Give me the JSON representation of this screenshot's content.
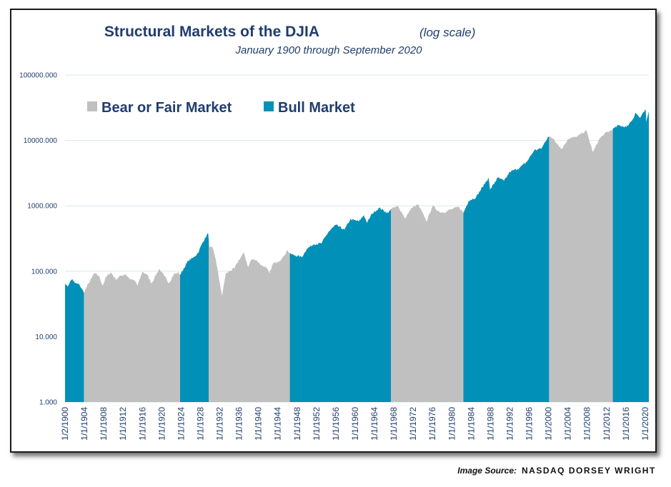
{
  "chart_data": {
    "type": "area",
    "title": "Structural Markets of the DJIA",
    "title_note": "(log scale)",
    "subtitle": "January 1900 through September 2020",
    "y_scale": "log",
    "ylim": [
      1,
      100000
    ],
    "y_ticks": [
      {
        "value": 1,
        "label": "1.000"
      },
      {
        "value": 10,
        "label": "10.000"
      },
      {
        "value": 100,
        "label": "100.000"
      },
      {
        "value": 1000,
        "label": "1000.000"
      },
      {
        "value": 10000,
        "label": "10000.000"
      },
      {
        "value": 100000,
        "label": "100000.000"
      }
    ],
    "x_ticks": [
      {
        "year": 1900.0,
        "label": "1/2/1900"
      },
      {
        "year": 1904,
        "label": "1/1/1904"
      },
      {
        "year": 1908,
        "label": "1/1/1908"
      },
      {
        "year": 1912,
        "label": "1/1/1912"
      },
      {
        "year": 1916,
        "label": "1/1/1916"
      },
      {
        "year": 1920,
        "label": "1/1/1920"
      },
      {
        "year": 1924,
        "label": "1/1/1924"
      },
      {
        "year": 1928,
        "label": "1/1/1928"
      },
      {
        "year": 1932,
        "label": "1/1/1932"
      },
      {
        "year": 1936,
        "label": "1/1/1936"
      },
      {
        "year": 1940,
        "label": "1/1/1940"
      },
      {
        "year": 1944,
        "label": "1/1/1944"
      },
      {
        "year": 1948,
        "label": "1/1/1948"
      },
      {
        "year": 1952,
        "label": "1/1/1952"
      },
      {
        "year": 1956,
        "label": "1/1/1956"
      },
      {
        "year": 1960,
        "label": "1/1/1960"
      },
      {
        "year": 1964,
        "label": "1/1/1964"
      },
      {
        "year": 1968,
        "label": "1/1/1968"
      },
      {
        "year": 1972,
        "label": "1/1/1972"
      },
      {
        "year": 1976,
        "label": "1/1/1976"
      },
      {
        "year": 1980,
        "label": "1/1/1980"
      },
      {
        "year": 1984,
        "label": "1/1/1984"
      },
      {
        "year": 1988,
        "label": "1/1/1988"
      },
      {
        "year": 1992,
        "label": "1/1/1992"
      },
      {
        "year": 1996,
        "label": "1/1/1996"
      },
      {
        "year": 2000,
        "label": "1/1/2000"
      },
      {
        "year": 2004,
        "label": "1/1/2004"
      },
      {
        "year": 2008,
        "label": "1/1/2008"
      },
      {
        "year": 2012,
        "label": "1/1/2012"
      },
      {
        "year": 2016,
        "label": "1/1/2016"
      },
      {
        "year": 2020,
        "label": "1/1/2020"
      }
    ],
    "xlim": [
      1900.0,
      2020.75
    ],
    "legend": {
      "placement": "top-left",
      "items": [
        {
          "label": "Bear or Fair Market",
          "color": "#c0c0c0"
        },
        {
          "label": "Bull Market",
          "color": "#0090b8"
        }
      ]
    },
    "regimes": [
      {
        "start": 1900.0,
        "end": 1903.9,
        "type": "bull"
      },
      {
        "start": 1903.9,
        "end": 1923.8,
        "type": "bear"
      },
      {
        "start": 1923.8,
        "end": 1929.7,
        "type": "bull"
      },
      {
        "start": 1929.7,
        "end": 1946.5,
        "type": "bear"
      },
      {
        "start": 1946.5,
        "end": 1967.4,
        "type": "bull"
      },
      {
        "start": 1967.4,
        "end": 1982.4,
        "type": "bear"
      },
      {
        "start": 1982.4,
        "end": 2000.1,
        "type": "bull"
      },
      {
        "start": 2000.1,
        "end": 2013.3,
        "type": "bear"
      },
      {
        "start": 2013.3,
        "end": 2020.75,
        "type": "bull"
      }
    ],
    "series": [
      {
        "values": [
          [
            1900.0,
            66
          ],
          [
            1900.5,
            58
          ],
          [
            1901.0,
            68
          ],
          [
            1901.5,
            76
          ],
          [
            1902.0,
            66
          ],
          [
            1903.0,
            62
          ],
          [
            1903.9,
            47
          ],
          [
            1904.5,
            58
          ],
          [
            1905.5,
            78
          ],
          [
            1906.0,
            93
          ],
          [
            1907.0,
            85
          ],
          [
            1907.8,
            60
          ],
          [
            1908.5,
            82
          ],
          [
            1909.5,
            96
          ],
          [
            1910.5,
            75
          ],
          [
            1911.5,
            85
          ],
          [
            1912.5,
            90
          ],
          [
            1913.5,
            75
          ],
          [
            1914.5,
            71
          ],
          [
            1915.0,
            60
          ],
          [
            1916.0,
            98
          ],
          [
            1917.0,
            88
          ],
          [
            1917.9,
            65
          ],
          [
            1918.5,
            80
          ],
          [
            1919.5,
            108
          ],
          [
            1920.5,
            85
          ],
          [
            1921.5,
            66
          ],
          [
            1922.5,
            90
          ],
          [
            1923.5,
            95
          ],
          [
            1923.8,
            88
          ],
          [
            1924.5,
            108
          ],
          [
            1925.5,
            145
          ],
          [
            1926.5,
            160
          ],
          [
            1927.5,
            190
          ],
          [
            1928.5,
            280
          ],
          [
            1929.6,
            381
          ],
          [
            1929.9,
            230
          ],
          [
            1930.5,
            230
          ],
          [
            1931.2,
            150
          ],
          [
            1931.8,
            80
          ],
          [
            1932.5,
            42
          ],
          [
            1933.2,
            90
          ],
          [
            1934.0,
            100
          ],
          [
            1935.0,
            110
          ],
          [
            1936.0,
            150
          ],
          [
            1937.0,
            190
          ],
          [
            1937.9,
            115
          ],
          [
            1938.5,
            150
          ],
          [
            1939.5,
            150
          ],
          [
            1940.5,
            125
          ],
          [
            1941.5,
            115
          ],
          [
            1942.3,
            93
          ],
          [
            1943.0,
            130
          ],
          [
            1944.0,
            140
          ],
          [
            1945.0,
            160
          ],
          [
            1946.0,
            210
          ],
          [
            1946.5,
            185
          ],
          [
            1947.5,
            175
          ],
          [
            1949.0,
            165
          ],
          [
            1950.0,
            220
          ],
          [
            1951.5,
            260
          ],
          [
            1953.0,
            265
          ],
          [
            1954.5,
            400
          ],
          [
            1956.0,
            510
          ],
          [
            1957.8,
            430
          ],
          [
            1959.0,
            620
          ],
          [
            1960.8,
            580
          ],
          [
            1961.8,
            720
          ],
          [
            1962.5,
            550
          ],
          [
            1963.5,
            760
          ],
          [
            1965.0,
            930
          ],
          [
            1966.8,
            770
          ],
          [
            1967.4,
            900
          ],
          [
            1968.9,
            980
          ],
          [
            1970.4,
            640
          ],
          [
            1971.5,
            900
          ],
          [
            1973.0,
            1050
          ],
          [
            1974.8,
            580
          ],
          [
            1976.0,
            1000
          ],
          [
            1977.5,
            800
          ],
          [
            1978.5,
            800
          ],
          [
            1980.0,
            890
          ],
          [
            1981.5,
            960
          ],
          [
            1982.4,
            780
          ],
          [
            1983.5,
            1200
          ],
          [
            1985.0,
            1350
          ],
          [
            1987.6,
            2700
          ],
          [
            1987.9,
            1750
          ],
          [
            1989.5,
            2700
          ],
          [
            1990.8,
            2400
          ],
          [
            1992.0,
            3300
          ],
          [
            1994.0,
            3800
          ],
          [
            1995.5,
            4700
          ],
          [
            1997.0,
            7000
          ],
          [
            1998.6,
            7600
          ],
          [
            1999.9,
            11500
          ],
          [
            2001.0,
            10700
          ],
          [
            2002.7,
            7300
          ],
          [
            2004.0,
            10500
          ],
          [
            2006.0,
            11500
          ],
          [
            2007.8,
            14200
          ],
          [
            2009.2,
            6600
          ],
          [
            2010.5,
            10500
          ],
          [
            2011.5,
            12500
          ],
          [
            2013.3,
            14800
          ],
          [
            2014.5,
            17000
          ],
          [
            2016.1,
            16000
          ],
          [
            2017.5,
            21500
          ],
          [
            2018.0,
            26600
          ],
          [
            2018.9,
            22000
          ],
          [
            2020.1,
            29500
          ],
          [
            2020.2,
            19000
          ],
          [
            2020.75,
            28000
          ]
        ]
      }
    ]
  },
  "source": {
    "prefix": "Image Source:",
    "brand": "NASDAQ DORSEY WRIGHT"
  }
}
